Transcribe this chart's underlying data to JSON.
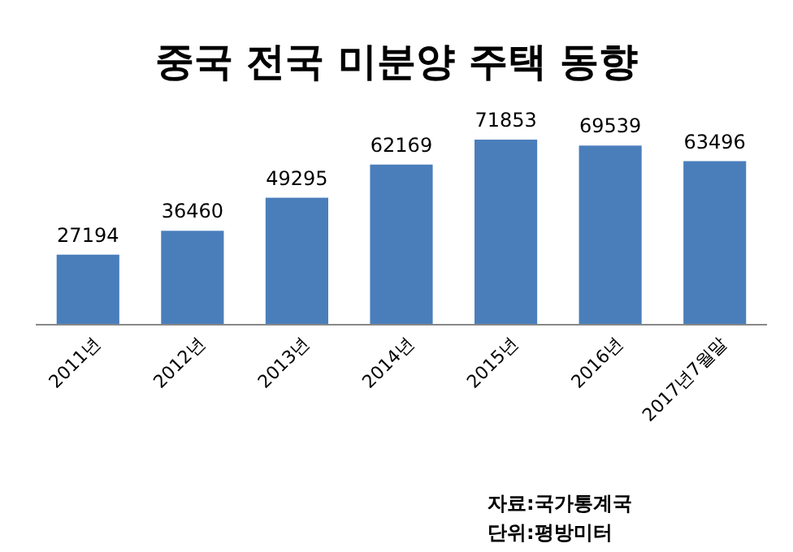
{
  "chart_data": {
    "type": "bar",
    "title": "중국 전국 미분양 주택 동향",
    "categories": [
      "2011년",
      "2012년",
      "2013년",
      "2014년",
      "2015년",
      "2016년",
      "2017년7월말"
    ],
    "values": [
      27194,
      36460,
      49295,
      62169,
      71853,
      69539,
      63496
    ],
    "color": "#4a7ebb",
    "data_labels": true,
    "annotations": [
      "자료:국가통계국",
      "단위:평방미터"
    ]
  }
}
